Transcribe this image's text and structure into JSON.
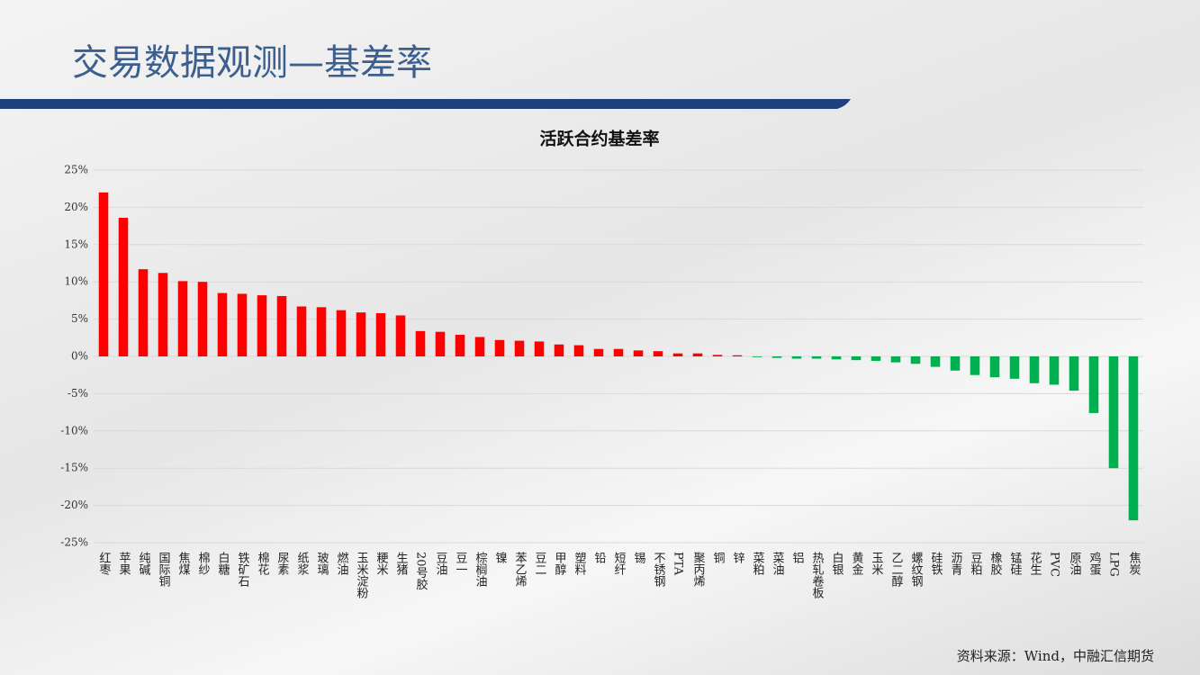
{
  "header": {
    "title": "交易数据观测—基差率"
  },
  "footer": {
    "source": "资料来源：Wind，中融汇信期货"
  },
  "chart_data": {
    "type": "bar",
    "title": "活跃合约基差率",
    "categories": [
      "红枣",
      "苹果",
      "纯碱",
      "国际铜",
      "焦煤",
      "棉纱",
      "白糖",
      "铁矿石",
      "棉花",
      "尿素",
      "纸浆",
      "玻璃",
      "燃油",
      "玉米淀粉",
      "粳米",
      "生猪",
      "20号胶",
      "豆油",
      "豆一",
      "棕榈油",
      "镍",
      "苯乙烯",
      "豆二",
      "甲醇",
      "塑料",
      "铅",
      "短纤",
      "锡",
      "不锈钢",
      "PTA",
      "聚丙烯",
      "铜",
      "锌",
      "菜粕",
      "菜油",
      "铝",
      "热轧卷板",
      "白银",
      "黄金",
      "玉米",
      "乙二醇",
      "螺纹钢",
      "硅铁",
      "沥青",
      "豆粕",
      "橡胶",
      "锰硅",
      "花生",
      "PVC",
      "原油",
      "鸡蛋",
      "LPG",
      "焦炭"
    ],
    "values": [
      22.0,
      18.6,
      11.7,
      11.2,
      10.1,
      10.0,
      8.5,
      8.4,
      8.2,
      8.1,
      6.7,
      6.6,
      6.2,
      5.9,
      5.8,
      5.5,
      3.4,
      3.3,
      2.9,
      2.6,
      2.2,
      2.1,
      2.0,
      1.6,
      1.5,
      1.0,
      1.0,
      0.8,
      0.7,
      0.4,
      0.4,
      0.2,
      0.15,
      -0.1,
      -0.2,
      -0.3,
      -0.3,
      -0.4,
      -0.5,
      -0.6,
      -0.8,
      -1.0,
      -1.4,
      -1.9,
      -2.5,
      -2.8,
      -3.0,
      -3.6,
      -3.8,
      -4.6,
      -7.6,
      -15.0,
      -22.0
    ],
    "positive_color": "#ff0000",
    "negative_color": "#00b050",
    "ylim": [
      -25,
      25
    ],
    "yticks": [
      {
        "value": -25,
        "label": "-25%"
      },
      {
        "value": -20,
        "label": "-20%"
      },
      {
        "value": -15,
        "label": "-15%"
      },
      {
        "value": -10,
        "label": "-10%"
      },
      {
        "value": -5,
        "label": "-5%"
      },
      {
        "value": 0,
        "label": "0%"
      },
      {
        "value": 5,
        "label": "5%"
      },
      {
        "value": 10,
        "label": "10%"
      },
      {
        "value": 15,
        "label": "15%"
      },
      {
        "value": 20,
        "label": "20%"
      },
      {
        "value": 25,
        "label": "25%"
      }
    ],
    "grid": true
  }
}
